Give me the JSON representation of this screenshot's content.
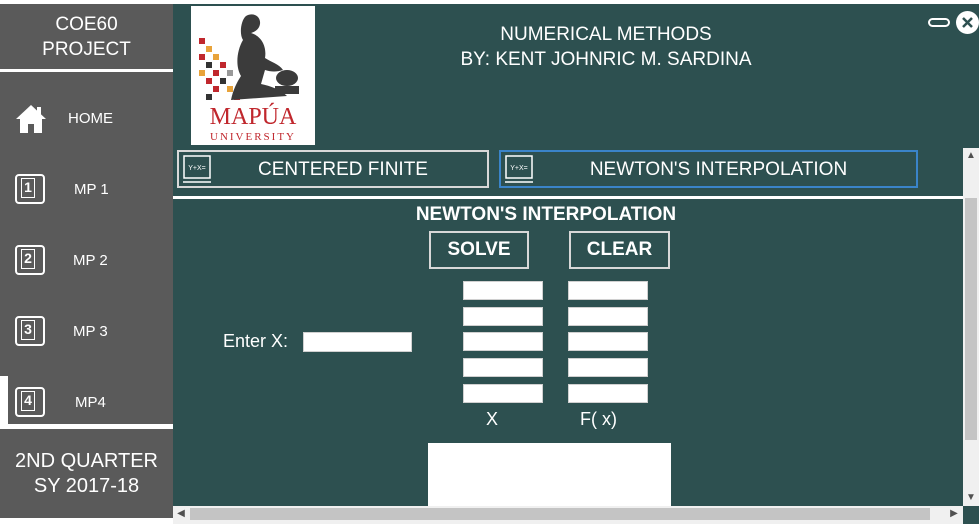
{
  "sidebar": {
    "title_line1": "COE60",
    "title_line2": "PROJECT",
    "items": [
      {
        "label": "HOME",
        "icon": "home-icon"
      },
      {
        "label": "MP 1",
        "icon": "number-1-icon",
        "num": "1"
      },
      {
        "label": "MP 2",
        "icon": "number-2-icon",
        "num": "2"
      },
      {
        "label": "MP 3",
        "icon": "number-3-icon",
        "num": "3"
      },
      {
        "label": "MP4",
        "icon": "number-4-icon",
        "num": "4"
      }
    ],
    "footer_line1": "2ND QUARTER",
    "footer_line2": "SY 2017-18"
  },
  "header": {
    "title_line1": "NUMERICAL METHODS",
    "title_line2": "BY: KENT JOHNRIC M. SARDINA",
    "logo_text": "MAPÚA",
    "logo_subtext": "UNIVERSITY"
  },
  "tabs": [
    {
      "label": "CENTERED FINITE",
      "icon_text": "Y+X="
    },
    {
      "label": "NEWTON'S INTERPOLATION",
      "icon_text": "Y+X="
    }
  ],
  "panel": {
    "title": "NEWTON'S INTERPOLATION",
    "solve_label": "SOLVE",
    "clear_label": "CLEAR",
    "enter_x_label": "Enter X:",
    "x_column_label": "X",
    "fx_column_label": "F( x)"
  },
  "colors": {
    "main_bg": "#2d5050",
    "sidebar_bg": "#5a5a5a",
    "active_tab_border": "#3a84c9",
    "logo_red": "#c0272d"
  }
}
